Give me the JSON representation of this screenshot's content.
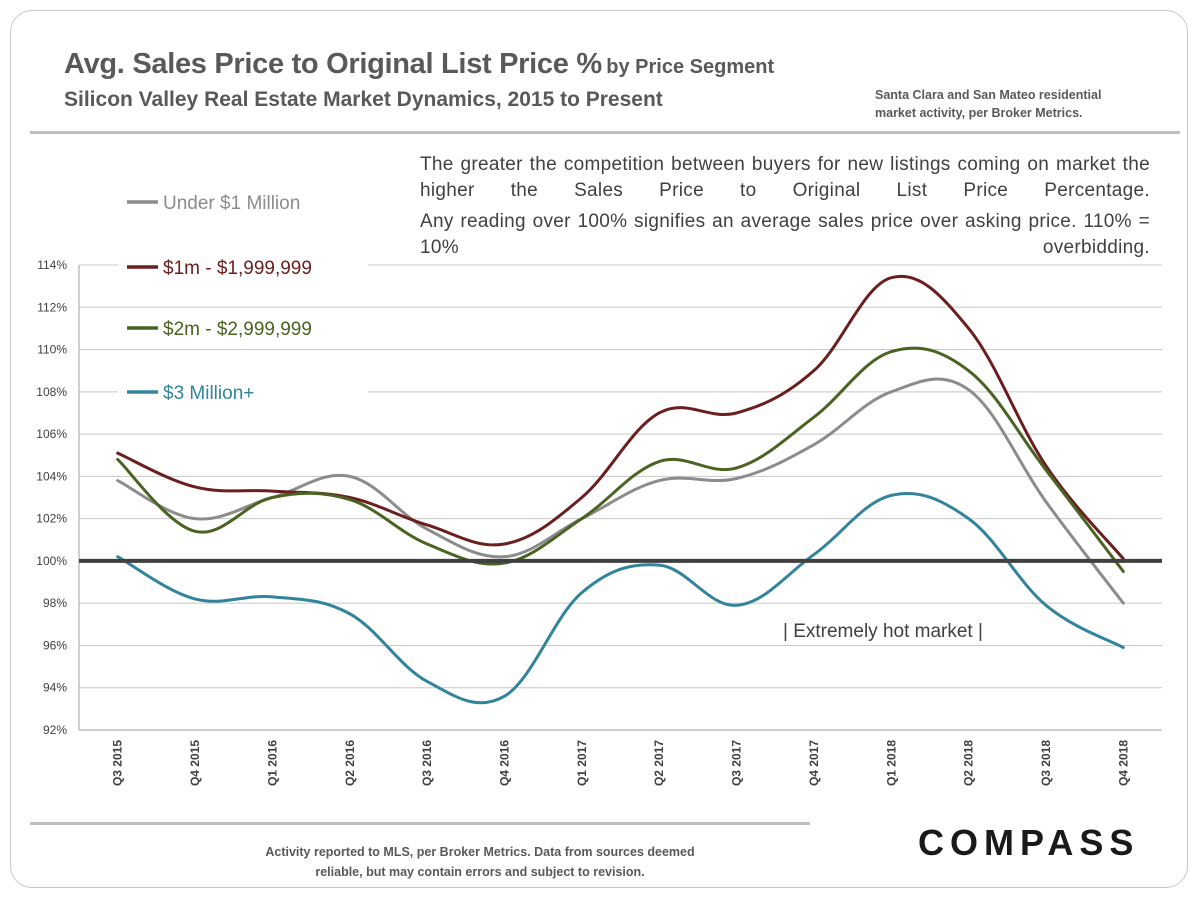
{
  "header": {
    "title_main": "Avg. Sales Price to Original List Price %",
    "title_segment": "by Price Segment",
    "subtitle": "Silicon Valley Real Estate Market Dynamics, 2015 to Present",
    "source_line1": "Santa Clara and San Mateo residential",
    "source_line2": "market activity, per Broker Metrics."
  },
  "notes": {
    "line1": "The greater the competition between buyers for new listings coming on market the higher the Sales Price to Original List Price Percentage.",
    "line2": "Any reading over 100% signifies an average sales price over asking price. 110% = 10% overbidding."
  },
  "footer": {
    "line1": "Activity reported to MLS, per Broker Metrics. Data from sources deemed",
    "line2": "reliable, but may contain errors and subject to revision.",
    "logo": "COMPASS"
  },
  "chart_data": {
    "type": "line",
    "x": [
      "Q3 2015",
      "Q4 2015",
      "Q1 2016",
      "Q2 2016",
      "Q3 2016",
      "Q4 2016",
      "Q1 2017",
      "Q2 2017",
      "Q3 2017",
      "Q4 2017",
      "Q1 2018",
      "Q2 2018",
      "Q3 2018",
      "Q4 2018"
    ],
    "ylim": [
      92,
      114
    ],
    "yticks": [
      "92%",
      "94%",
      "96%",
      "98%",
      "100%",
      "102%",
      "104%",
      "106%",
      "108%",
      "110%",
      "112%",
      "114%"
    ],
    "reference_line": 100,
    "grid": true,
    "legend_position": "top-left",
    "annotation": "| Extremely hot market |",
    "series": [
      {
        "name": "Under $1 Million",
        "color": "#8c8c8c",
        "values": [
          103.8,
          102.0,
          103.0,
          104.0,
          101.5,
          100.2,
          102.0,
          103.8,
          103.9,
          105.5,
          108.0,
          108.1,
          102.8,
          98.0
        ]
      },
      {
        "name": "$1m - $1,999,999",
        "color": "#6b1e1e",
        "values": [
          105.1,
          103.5,
          103.3,
          103.0,
          101.7,
          100.8,
          103.0,
          107.0,
          107.0,
          109.0,
          113.4,
          111.0,
          104.5,
          100.1
        ]
      },
      {
        "name": "$2m - $2,999,999",
        "color": "#4a6321",
        "values": [
          104.8,
          101.4,
          103.0,
          102.9,
          100.8,
          99.9,
          102.0,
          104.7,
          104.4,
          106.8,
          109.9,
          109.0,
          104.3,
          99.5
        ]
      },
      {
        "name": "$3 Million+",
        "color": "#31849b",
        "values": [
          100.2,
          98.2,
          98.3,
          97.5,
          94.3,
          93.6,
          98.5,
          99.8,
          97.9,
          100.3,
          103.1,
          102.0,
          97.9,
          95.9
        ]
      }
    ]
  }
}
